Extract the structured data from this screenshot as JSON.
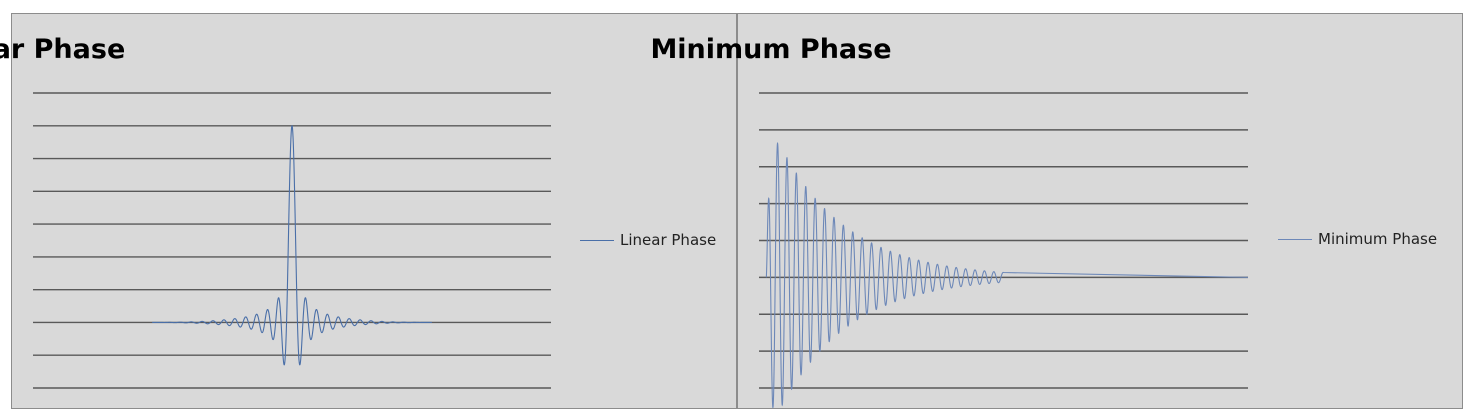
{
  "colors": {
    "panel_bg": "#d9d9d9",
    "grid": "#595959",
    "series_0": "#4a6fa8",
    "series_1": "#6d88b8"
  },
  "charts": [
    {
      "title": "Linear Phase",
      "legend": {
        "label": "Linear Phase",
        "placement": "right"
      },
      "chart_data": {
        "type": "line",
        "shape": "symmetric sinc-like impulse response",
        "x_range": [
          0,
          1
        ],
        "ylim": [
          -1,
          3.5
        ],
        "grid": "horizontal",
        "gridline_count": 10,
        "main_peak": {
          "x": 0.5,
          "y": 3.0
        },
        "first_negative_lobe": -0.62,
        "nonzero_span": [
          0.23,
          0.77
        ],
        "series": [
          {
            "name": "Linear Phase"
          }
        ]
      }
    },
    {
      "title": "Minimum Phase",
      "legend": {
        "label": "Minimum Phase",
        "placement": "right"
      },
      "chart_data": {
        "type": "line",
        "shape": "decaying oscillation impulse response",
        "x_range": [
          0,
          1
        ],
        "ylim": [
          -3,
          5
        ],
        "grid": "horizontal",
        "gridline_count": 9,
        "main_peak": {
          "x": 0.043,
          "y": 4.0
        },
        "first_negative_lobe": -2.3,
        "nonzero_span": [
          0.015,
          0.5
        ],
        "series": [
          {
            "name": "Minimum Phase"
          }
        ]
      }
    }
  ]
}
